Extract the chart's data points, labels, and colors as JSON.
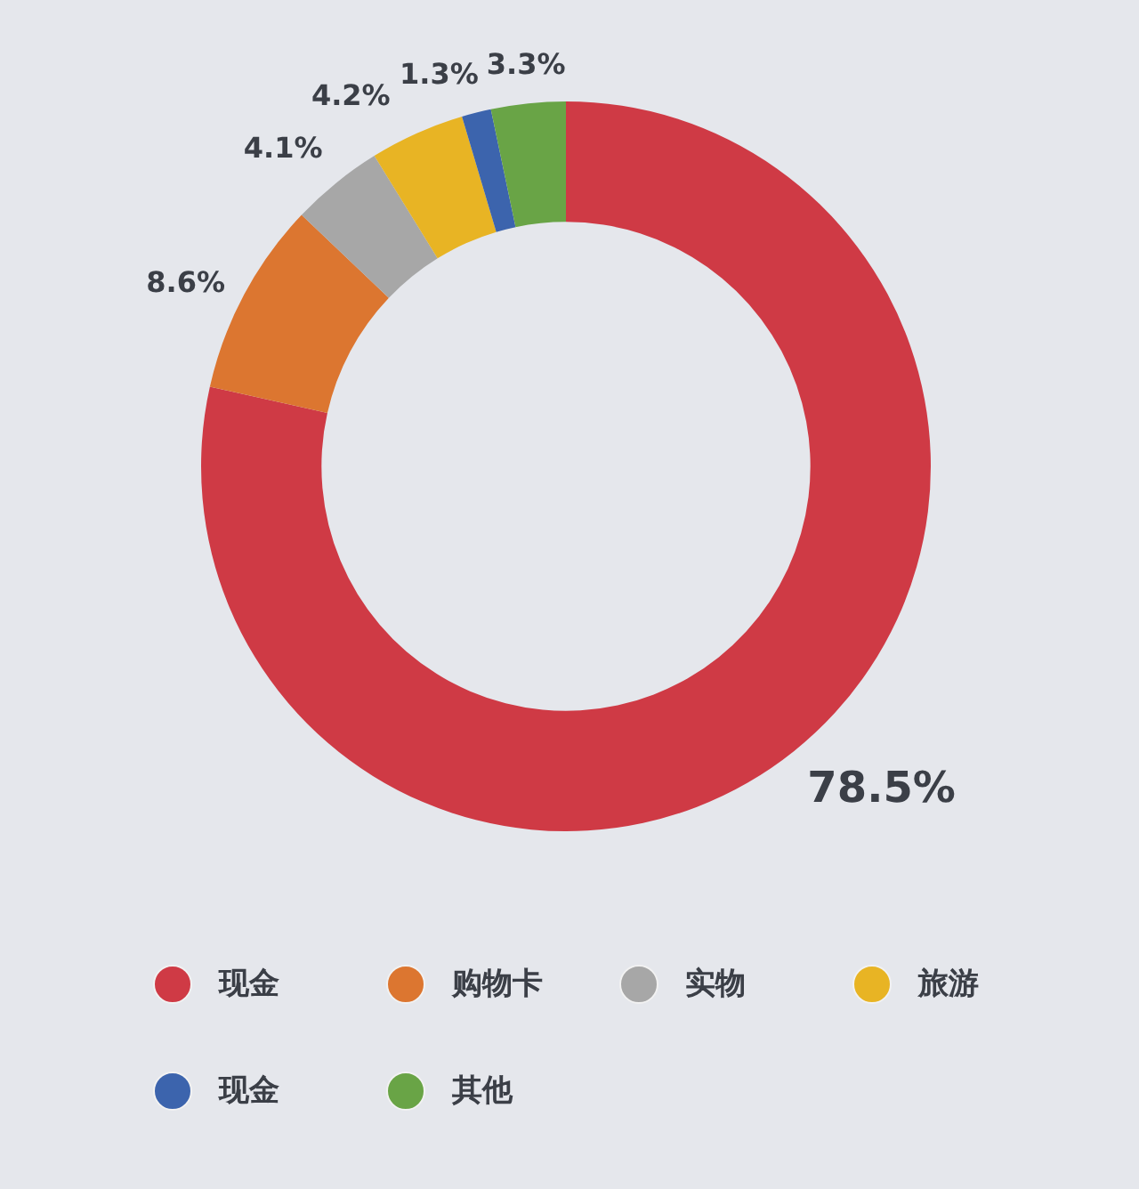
{
  "chart_data": {
    "type": "donut",
    "categories": [
      "现金",
      "购物卡",
      "实物",
      "旅游",
      "现金",
      "其他"
    ],
    "values": [
      78.5,
      8.6,
      4.1,
      4.2,
      1.3,
      3.3
    ],
    "colors": [
      "#cf3a45",
      "#dc7630",
      "#a7a7a7",
      "#e8b424",
      "#3c64ad",
      "#69a446"
    ],
    "value_labels": [
      "78.5%",
      "8.6%",
      "4.1%",
      "4.2%",
      "1.3%",
      "3.3%"
    ],
    "legend": "bottom"
  }
}
